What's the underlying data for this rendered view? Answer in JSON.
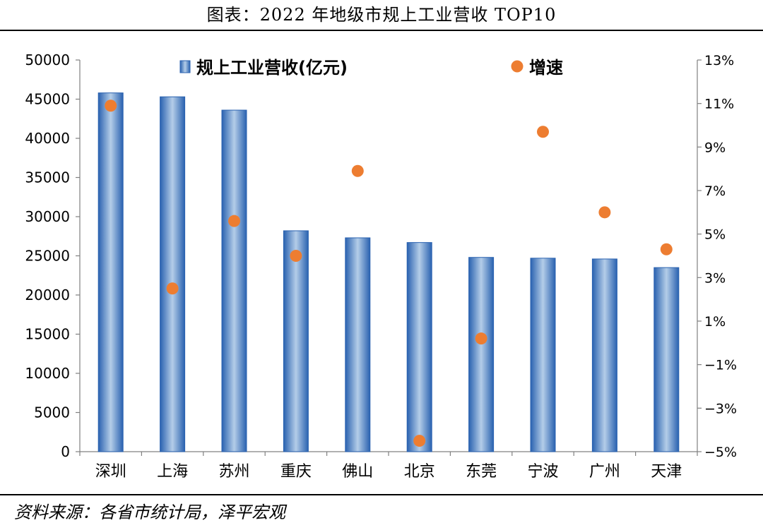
{
  "title": "图表：2022 年地级市规上工业营收 TOP10",
  "source": "资料来源：各省市统计局，泽平宏观",
  "colors": {
    "bar_dark": "#2a62b0",
    "bar_light": "#b4cde8",
    "dot": "#ed7d31",
    "axis": "#808080"
  },
  "chart_data": {
    "type": "bar",
    "title": "",
    "xlabel": "",
    "ylabel": "",
    "categories": [
      "深圳",
      "上海",
      "苏州",
      "重庆",
      "佛山",
      "北京",
      "东莞",
      "宁波",
      "广州",
      "天津"
    ],
    "series": [
      {
        "name": "规上工业营收(亿元)",
        "type": "bar",
        "axis": "left",
        "values": [
          45800,
          45300,
          43600,
          28200,
          27300,
          26700,
          24800,
          24700,
          24600,
          23500
        ]
      },
      {
        "name": "增速",
        "type": "scatter",
        "axis": "right",
        "values": [
          10.9,
          2.5,
          5.6,
          4.0,
          7.9,
          -4.5,
          0.2,
          9.7,
          6.0,
          4.3
        ]
      }
    ],
    "ylim": [
      0,
      50000
    ],
    "yticks": [
      "0",
      "5000",
      "10000",
      "15000",
      "20000",
      "25000",
      "30000",
      "35000",
      "40000",
      "45000",
      "50000"
    ],
    "y2lim": [
      -5,
      13
    ],
    "y2ticks": [
      "−5%",
      "−3%",
      "−1%",
      "1%",
      "3%",
      "5%",
      "7%",
      "9%",
      "11%",
      "13%"
    ],
    "legend": {
      "placement": "top",
      "items": [
        "规上工业营收(亿元)",
        "增速"
      ]
    },
    "grid": false
  }
}
